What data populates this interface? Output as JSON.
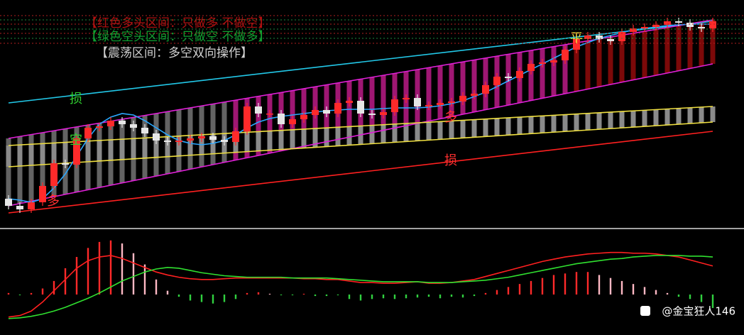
{
  "header": {
    "bull": "【红色多头区间：只做多 不做空】",
    "bear": "【绿色空头区间：只做空 不做多】",
    "range": "【震荡区间：多空双向操作】"
  },
  "watermark": "@金宝狂人146",
  "chart_data": {
    "type": "candlestick",
    "ylim": [
      10,
      330
    ],
    "candles": {
      "up_color": "#ff2a2a",
      "down_color": "#e6e6e6",
      "open": [
        50,
        40,
        35,
        45,
        68,
        100,
        98,
        135,
        150,
        152,
        160,
        155,
        150,
        142,
        132,
        130,
        132,
        135,
        138,
        133,
        130,
        145,
        180,
        170,
        170,
        155,
        162,
        168,
        175,
        170,
        185,
        188,
        170,
        168,
        172,
        190,
        192,
        180,
        182,
        185,
        187,
        195,
        198,
        210,
        222,
        220,
        230,
        240,
        242,
        245,
        260,
        275,
        280,
        275,
        272,
        285,
        290,
        292,
        295,
        300,
        298,
        292,
        290
      ],
      "high": [
        55,
        45,
        50,
        73,
        105,
        105,
        140,
        155,
        157,
        165,
        165,
        160,
        155,
        147,
        137,
        137,
        140,
        143,
        143,
        138,
        150,
        185,
        185,
        175,
        175,
        167,
        173,
        180,
        180,
        190,
        193,
        193,
        175,
        177,
        195,
        197,
        197,
        187,
        190,
        192,
        200,
        203,
        215,
        227,
        227,
        235,
        245,
        247,
        250,
        265,
        280,
        285,
        285,
        280,
        290,
        295,
        297,
        300,
        305,
        305,
        303,
        297,
        305
      ],
      "low": [
        35,
        30,
        30,
        40,
        63,
        93,
        93,
        130,
        145,
        147,
        150,
        145,
        137,
        127,
        125,
        125,
        127,
        130,
        128,
        125,
        125,
        140,
        165,
        165,
        150,
        150,
        157,
        163,
        165,
        165,
        180,
        165,
        163,
        163,
        167,
        185,
        175,
        175,
        177,
        180,
        182,
        190,
        193,
        205,
        215,
        215,
        225,
        235,
        237,
        240,
        255,
        270,
        270,
        267,
        267,
        280,
        285,
        287,
        290,
        293,
        287,
        285,
        285
      ],
      "close": [
        40,
        35,
        45,
        68,
        100,
        98,
        135,
        150,
        152,
        160,
        155,
        150,
        142,
        132,
        130,
        132,
        135,
        138,
        133,
        130,
        145,
        180,
        170,
        170,
        155,
        162,
        168,
        175,
        170,
        185,
        188,
        170,
        168,
        172,
        190,
        192,
        180,
        182,
        185,
        187,
        195,
        198,
        210,
        222,
        220,
        230,
        240,
        242,
        245,
        260,
        275,
        280,
        275,
        272,
        285,
        290,
        292,
        295,
        300,
        298,
        292,
        290,
        300
      ]
    },
    "lines": [
      {
        "color": "#22c8e8",
        "x": [
          0,
          62
        ],
        "values": [
          185,
          300
        ]
      },
      {
        "color": "#e020d8",
        "x": [
          0,
          62
        ],
        "values": [
          135,
          302
        ]
      },
      {
        "color": "#e020d8",
        "x": [
          0,
          62
        ],
        "values": [
          40,
          240
        ]
      },
      {
        "color": "#f0e040",
        "x": [
          0,
          62
        ],
        "values": [
          125,
          180
        ]
      },
      {
        "color": "#f0e040",
        "x": [
          0,
          62
        ],
        "values": [
          95,
          158
        ]
      },
      {
        "color": "#ff2020",
        "x": [
          0,
          62
        ],
        "values": [
          30,
          145
        ]
      },
      {
        "color": "#2aa8ff",
        "values": [
          50,
          48,
          45,
          50,
          65,
          85,
          110,
          135,
          155,
          165,
          170,
          168,
          160,
          150,
          140,
          132,
          128,
          126,
          128,
          132,
          140,
          150,
          158,
          163,
          166,
          168,
          170,
          172,
          174,
          175,
          176,
          176,
          176,
          177,
          178,
          178,
          178,
          179,
          181,
          184,
          188,
          194,
          200,
          208,
          216,
          224,
          232,
          240,
          248,
          256,
          264,
          270,
          276,
          280,
          284,
          288,
          290,
          292,
          294,
          295,
          296,
          296,
          296
        ]
      }
    ],
    "annotations": [
      {
        "text": "损",
        "color": "#30d030"
      },
      {
        "text": "空",
        "color": "#30d030"
      },
      {
        "text": "多",
        "color": "#ff3030"
      },
      {
        "text": "多",
        "color": "#ff3030"
      },
      {
        "text": "损",
        "color": "#ff3030"
      },
      {
        "text": "平",
        "color": "#f0e040"
      }
    ],
    "macd": {
      "type": "bar",
      "ylim": [
        -35,
        85
      ],
      "rise_color": "#ff2a2a",
      "fall_color": "#ffb8c4",
      "neg_color": "#30d040",
      "values": [
        2,
        -1,
        2,
        8,
        18,
        35,
        50,
        62,
        70,
        72,
        68,
        55,
        40,
        20,
        5,
        -3,
        -8,
        -10,
        -12,
        -10,
        -6,
        2,
        3,
        1,
        -1,
        -1,
        1,
        -2,
        -2,
        -1,
        -6,
        -8,
        -6,
        -5,
        -6,
        -5,
        -4,
        -3,
        -5,
        -3,
        -4,
        -2,
        2,
        6,
        10,
        14,
        18,
        22,
        26,
        28,
        30,
        30,
        26,
        22,
        18,
        14,
        10,
        6,
        2,
        -3,
        -6,
        -10,
        -18
      ],
      "lines": [
        {
          "color": "#ff2020",
          "values": [
            -30,
            -28,
            -22,
            -10,
            5,
            20,
            35,
            45,
            50,
            52,
            48,
            42,
            36,
            30,
            26,
            23,
            21,
            20,
            20,
            21,
            22,
            22,
            22,
            22,
            22,
            22,
            21,
            21,
            20,
            20,
            18,
            16,
            16,
            15,
            15,
            16,
            17,
            15,
            15,
            16,
            18,
            20,
            24,
            28,
            32,
            36,
            40,
            44,
            47,
            50,
            52,
            54,
            55,
            56,
            56,
            55,
            55,
            54,
            52,
            50,
            46,
            42,
            38
          ]
        },
        {
          "color": "#30e030",
          "values": [
            -32,
            -31,
            -29,
            -26,
            -22,
            -17,
            -11,
            -5,
            2,
            10,
            18,
            24,
            30,
            34,
            36,
            35,
            32,
            29,
            27,
            25,
            24,
            23,
            23,
            23,
            23,
            22,
            22,
            22,
            22,
            21,
            20,
            19,
            18,
            17,
            17,
            17,
            17,
            16,
            16,
            16,
            17,
            18,
            19,
            21,
            23,
            26,
            29,
            32,
            35,
            38,
            41,
            43,
            45,
            47,
            48,
            50,
            51,
            52,
            52,
            52,
            51,
            51,
            50
          ]
        }
      ]
    }
  }
}
